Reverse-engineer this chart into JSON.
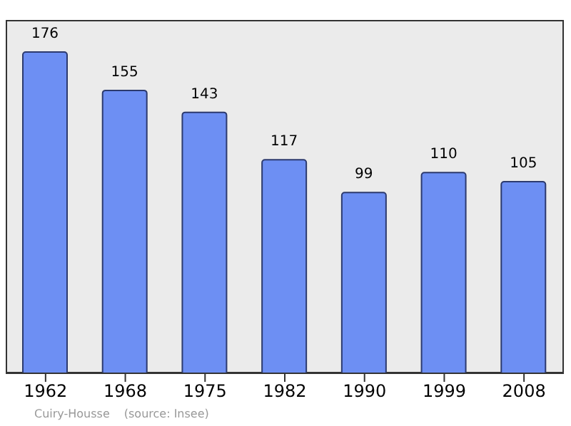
{
  "chart_data": {
    "type": "bar",
    "categories": [
      "1962",
      "1968",
      "1975",
      "1982",
      "1990",
      "1999",
      "2008"
    ],
    "values": [
      176,
      155,
      143,
      117,
      99,
      110,
      105
    ],
    "color": "#6d8ff3",
    "data_labels": true,
    "annotations": [
      "Cuiry-Housse",
      "(source: Insee)"
    ]
  }
}
